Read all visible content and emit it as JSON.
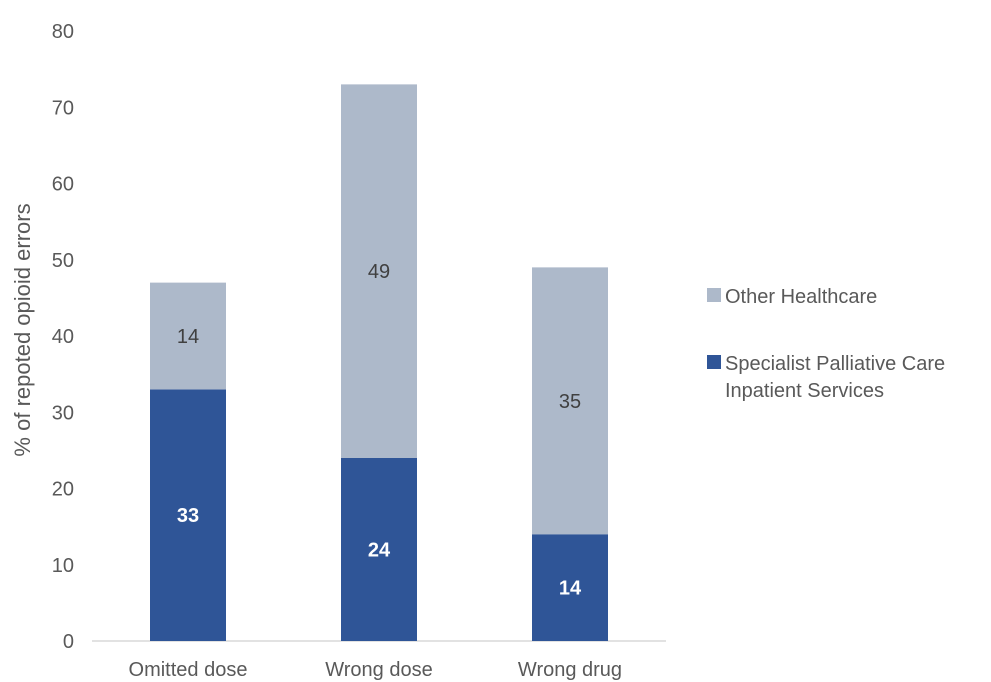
{
  "chart_data": {
    "type": "bar",
    "stacked": true,
    "categories": [
      "Omitted dose",
      "Wrong dose",
      "Wrong drug"
    ],
    "series": [
      {
        "name": "Specialist Palliative Care Inpatient Services",
        "values": [
          33,
          24,
          14
        ],
        "color": "#2f5597"
      },
      {
        "name": "Other Healthcare",
        "values": [
          14,
          49,
          35
        ],
        "color": "#adb9ca"
      }
    ],
    "ylabel": "% of repoted opioid errors",
    "xlabel": "",
    "ylim": [
      0,
      80
    ],
    "yticks": [
      0,
      10,
      20,
      30,
      40,
      50,
      60,
      70,
      80
    ],
    "grid": false,
    "legend_position": "right",
    "legend": [
      {
        "label": "Other Healthcare",
        "color": "#adb9ca"
      },
      {
        "label": "Specialist Palliative Care Inpatient Services",
        "label_lines": [
          "Specialist Palliative Care",
          "Inpatient Services"
        ],
        "color": "#2f5597"
      }
    ]
  }
}
